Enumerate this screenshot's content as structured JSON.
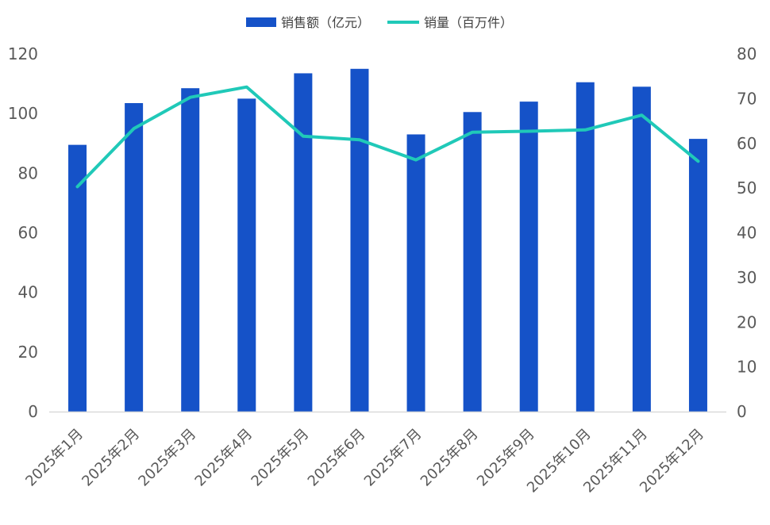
{
  "chart_data": {
    "type": "bar",
    "title": "",
    "categories": [
      "2025年1月",
      "2025年2月",
      "2025年3月",
      "2025年4月",
      "2025年5月",
      "2025年6月",
      "2025年7月",
      "2025年8月",
      "2025年9月",
      "2025年10月",
      "2025年11月",
      "2025年12月"
    ],
    "series": [
      {
        "name": "销售额（亿元）",
        "type": "bar",
        "axis": "left",
        "color": "#1552C8",
        "values": [
          89.5,
          103.5,
          108.5,
          105,
          113.5,
          115,
          93,
          100.5,
          104,
          110.5,
          109,
          91.5
        ]
      },
      {
        "name": "销量（百万件）",
        "type": "line",
        "axis": "right",
        "color": "#20C9B8",
        "values": [
          50.3,
          63.3,
          70.3,
          72.6,
          61.6,
          60.8,
          56.3,
          62.5,
          62.7,
          63.0,
          66.3,
          56.0
        ]
      }
    ],
    "y_left": {
      "min": 0,
      "max": 120,
      "ticks": [
        0,
        20,
        40,
        60,
        80,
        100,
        120
      ]
    },
    "y_right": {
      "min": 0,
      "max": 80,
      "ticks": [
        0,
        10,
        20,
        30,
        40,
        50,
        60,
        70,
        80
      ]
    },
    "legend_position": "top-center",
    "grid": false
  }
}
